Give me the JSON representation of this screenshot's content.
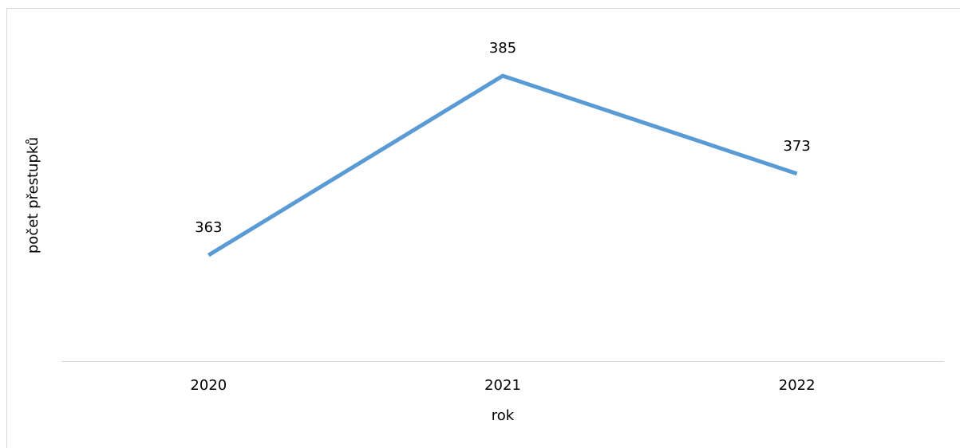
{
  "chart_data": {
    "type": "line",
    "x_label": "rok",
    "y_label": "počet přestupků",
    "categories": [
      "2020",
      "2021",
      "2022"
    ],
    "series": [
      {
        "name": "počet přestupků",
        "color": "#5b9bd5",
        "values": [
          363,
          385,
          373
        ]
      }
    ],
    "ylim": [
      350,
      390
    ]
  }
}
